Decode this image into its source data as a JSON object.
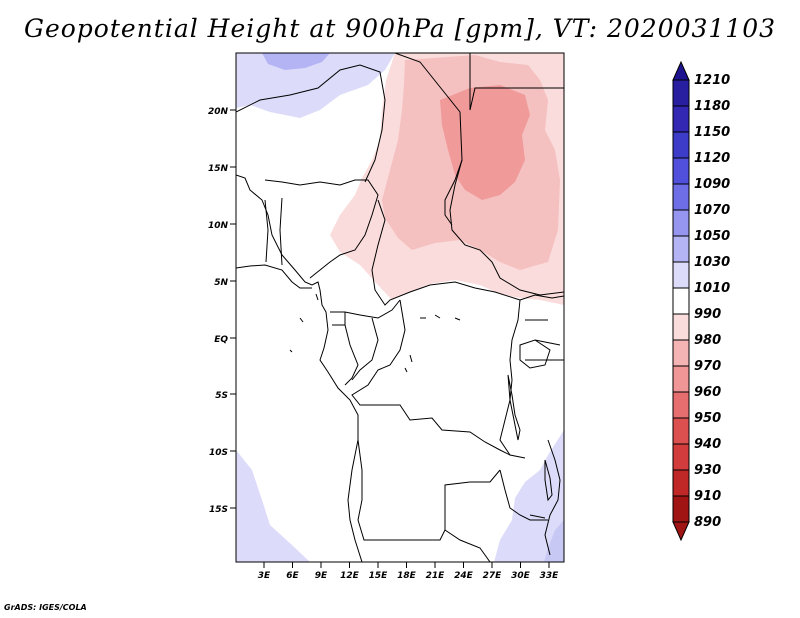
{
  "title": "Geopotential Height at 900hPa [gpm], VT: 2020031103",
  "credit": "GrADS: IGES/COLA",
  "map": {
    "lat_labels": [
      "20N",
      "15N",
      "10N",
      "5N",
      "EQ",
      "5S",
      "10S",
      "15S"
    ],
    "lon_labels": [
      "3E",
      "6E",
      "9E",
      "12E",
      "15E",
      "18E",
      "21E",
      "24E",
      "27E",
      "30E",
      "33E"
    ]
  },
  "colorbar": {
    "levels": [
      "1210",
      "1180",
      "1150",
      "1120",
      "1090",
      "1070",
      "1050",
      "1030",
      "1010",
      "990",
      "980",
      "970",
      "960",
      "950",
      "940",
      "930",
      "910",
      "890"
    ],
    "colors": [
      "#1e1490",
      "#281ea0",
      "#3228b4",
      "#3c3cc8",
      "#5050dc",
      "#6e6ee6",
      "#9696f0",
      "#b4b4f5",
      "#dcdcfa",
      "#ffffff",
      "#fadcdc",
      "#f5b4b4",
      "#f09696",
      "#e66e6e",
      "#dc5050",
      "#d23c3c",
      "#c02828",
      "#a01414"
    ]
  }
}
